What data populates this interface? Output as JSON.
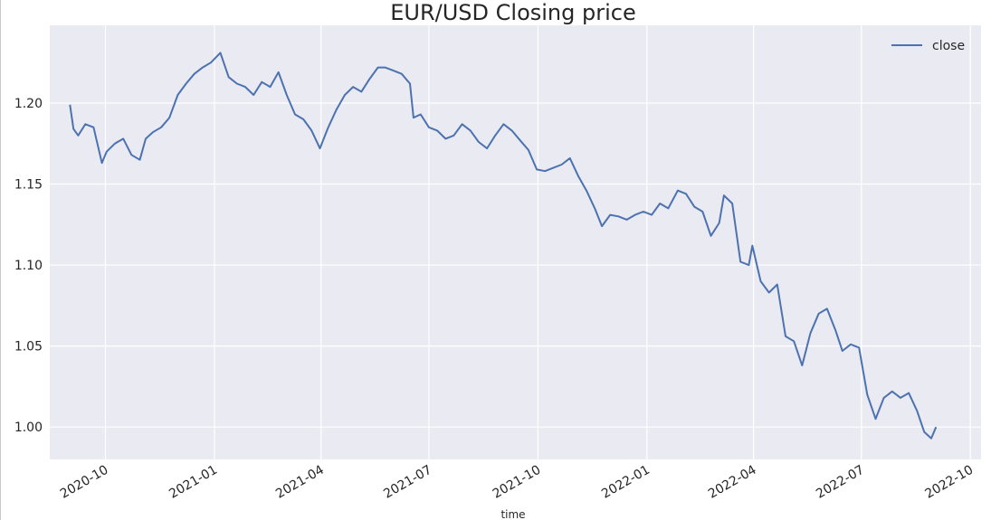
{
  "chart_data": {
    "type": "line",
    "title": "EUR/USD Closing price",
    "xlabel": "time",
    "ylabel": "",
    "x_ticks": [
      "2020-10",
      "2021-01",
      "2021-04",
      "2021-07",
      "2021-10",
      "2022-01",
      "2022-04",
      "2022-07",
      "2022-10"
    ],
    "y_ticks": [
      "1.00",
      "1.05",
      "1.10",
      "1.15",
      "1.20"
    ],
    "xlim": [
      "2020-08-15",
      "2022-10-10"
    ],
    "ylim": [
      0.98,
      1.248
    ],
    "grid": true,
    "legend_position": "top-right",
    "background_color": "#eaeaf2",
    "series": [
      {
        "name": "close",
        "color": "#4c72b0",
        "x": [
          "2020-09-01",
          "2020-09-04",
          "2020-09-08",
          "2020-09-14",
          "2020-09-21",
          "2020-09-28",
          "2020-10-02",
          "2020-10-09",
          "2020-10-16",
          "2020-10-23",
          "2020-10-30",
          "2020-11-04",
          "2020-11-10",
          "2020-11-17",
          "2020-11-24",
          "2020-12-01",
          "2020-12-08",
          "2020-12-15",
          "2020-12-22",
          "2020-12-29",
          "2021-01-06",
          "2021-01-13",
          "2021-01-20",
          "2021-01-27",
          "2021-02-03",
          "2021-02-10",
          "2021-02-17",
          "2021-02-24",
          "2021-03-03",
          "2021-03-10",
          "2021-03-17",
          "2021-03-24",
          "2021-03-31",
          "2021-04-07",
          "2021-04-14",
          "2021-04-21",
          "2021-04-28",
          "2021-05-05",
          "2021-05-12",
          "2021-05-19",
          "2021-05-25",
          "2021-06-01",
          "2021-06-08",
          "2021-06-15",
          "2021-06-18",
          "2021-06-24",
          "2021-07-01",
          "2021-07-08",
          "2021-07-15",
          "2021-07-22",
          "2021-07-29",
          "2021-08-05",
          "2021-08-12",
          "2021-08-19",
          "2021-08-26",
          "2021-09-02",
          "2021-09-09",
          "2021-09-16",
          "2021-09-23",
          "2021-09-30",
          "2021-10-07",
          "2021-10-14",
          "2021-10-21",
          "2021-10-28",
          "2021-11-04",
          "2021-11-11",
          "2021-11-18",
          "2021-11-24",
          "2021-12-01",
          "2021-12-08",
          "2021-12-15",
          "2021-12-22",
          "2021-12-29",
          "2022-01-05",
          "2022-01-12",
          "2022-01-19",
          "2022-01-27",
          "2022-02-03",
          "2022-02-10",
          "2022-02-17",
          "2022-02-24",
          "2022-03-03",
          "2022-03-07",
          "2022-03-14",
          "2022-03-21",
          "2022-03-28",
          "2022-03-31",
          "2022-04-07",
          "2022-04-14",
          "2022-04-21",
          "2022-04-28",
          "2022-05-05",
          "2022-05-12",
          "2022-05-19",
          "2022-05-26",
          "2022-06-02",
          "2022-06-09",
          "2022-06-15",
          "2022-06-22",
          "2022-06-29",
          "2022-07-06",
          "2022-07-13",
          "2022-07-20",
          "2022-07-27",
          "2022-08-03",
          "2022-08-10",
          "2022-08-17",
          "2022-08-23",
          "2022-08-29",
          "2022-09-02"
        ],
        "values": [
          1.199,
          1.184,
          1.18,
          1.187,
          1.185,
          1.163,
          1.17,
          1.175,
          1.178,
          1.168,
          1.165,
          1.178,
          1.182,
          1.185,
          1.191,
          1.205,
          1.212,
          1.218,
          1.222,
          1.225,
          1.231,
          1.216,
          1.212,
          1.21,
          1.205,
          1.213,
          1.21,
          1.219,
          1.205,
          1.193,
          1.19,
          1.183,
          1.172,
          1.185,
          1.196,
          1.205,
          1.21,
          1.207,
          1.215,
          1.222,
          1.222,
          1.22,
          1.218,
          1.212,
          1.191,
          1.193,
          1.185,
          1.183,
          1.178,
          1.18,
          1.187,
          1.183,
          1.176,
          1.172,
          1.18,
          1.187,
          1.183,
          1.177,
          1.171,
          1.159,
          1.158,
          1.16,
          1.162,
          1.166,
          1.155,
          1.146,
          1.135,
          1.124,
          1.131,
          1.13,
          1.128,
          1.131,
          1.133,
          1.131,
          1.138,
          1.135,
          1.146,
          1.144,
          1.136,
          1.133,
          1.118,
          1.126,
          1.143,
          1.138,
          1.102,
          1.1,
          1.112,
          1.09,
          1.083,
          1.088,
          1.056,
          1.053,
          1.038,
          1.058,
          1.07,
          1.073,
          1.06,
          1.047,
          1.051,
          1.049,
          1.02,
          1.005,
          1.018,
          1.022,
          1.018,
          1.021,
          1.01,
          0.997,
          0.993,
          1.0
        ]
      }
    ]
  }
}
